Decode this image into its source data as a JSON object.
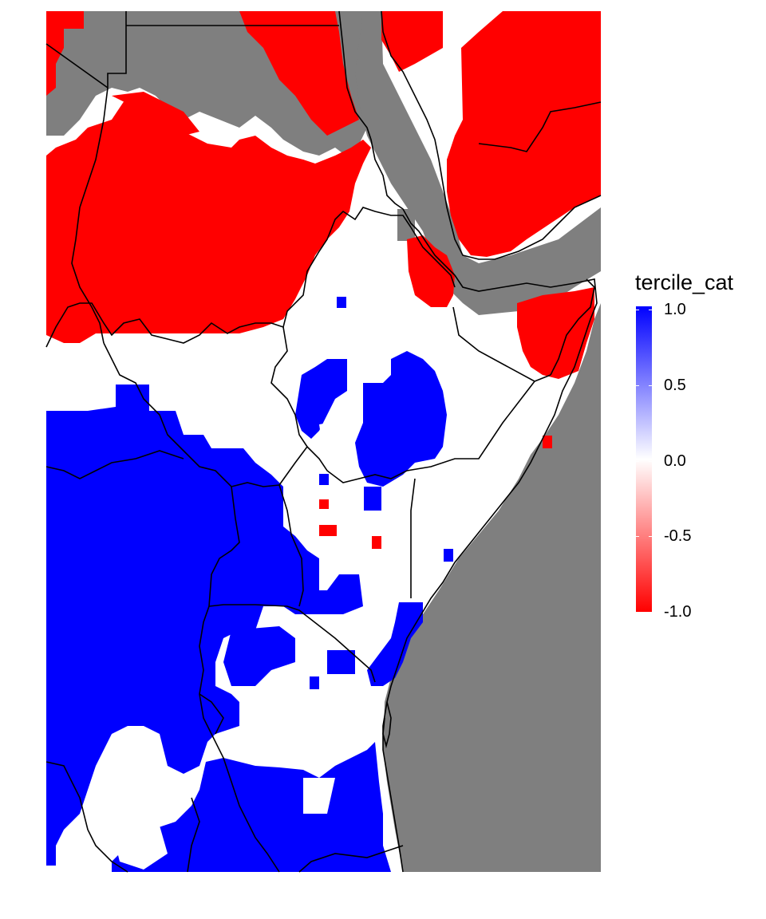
{
  "map": {
    "legend": {
      "title": "tercile_cat",
      "ticks": [
        "1.0",
        "0.5",
        "0.0",
        "-0.5",
        "-1.0"
      ],
      "tick_values": [
        1.0,
        0.5,
        0.0,
        -0.5,
        -1.0
      ],
      "range": [
        -1.0,
        1.0
      ]
    },
    "colors": {
      "positive": "#0000ff",
      "neutral": "#ffffff",
      "negative": "#ff0000",
      "missing": "#7f7f7f",
      "border": "#000000"
    }
  }
}
